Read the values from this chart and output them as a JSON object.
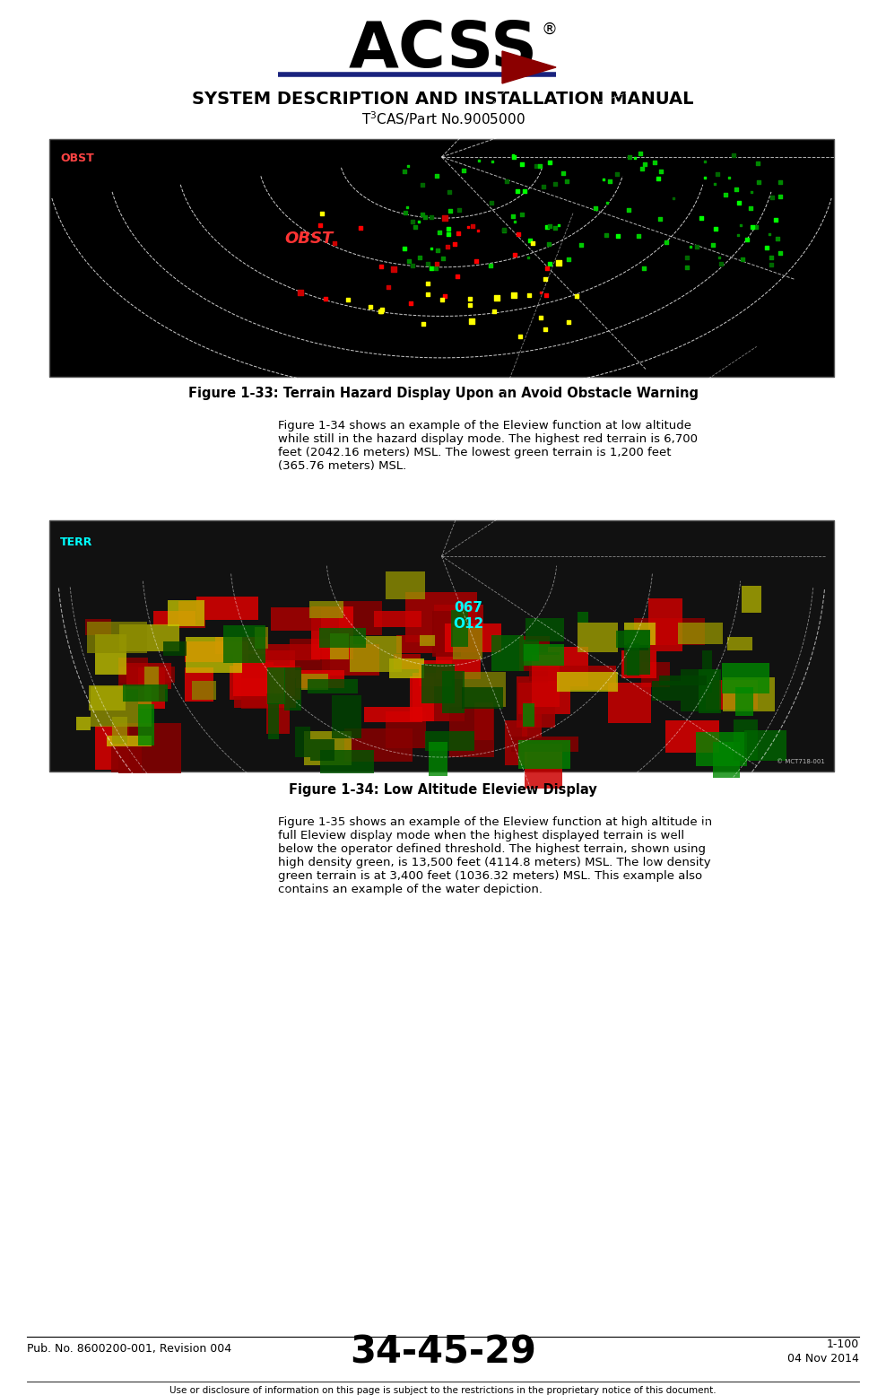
{
  "title_line1": "SYSTEM DESCRIPTION AND INSTALLATION MANUAL",
  "title_line2": "T$^3$CAS/Part No.9005000",
  "fig33_caption": "Figure 1-33: Terrain Hazard Display Upon an Avoid Obstacle Warning",
  "fig34_caption": "Figure 1-34: Low Altitude Eleview Display",
  "fig33_text": "Figure 1-34 shows an example of the Eleview function at low altitude\nwhile still in the hazard display mode. The highest red terrain is 6,700\nfeet (2042.16 meters) MSL. The lowest green terrain is 1,200 feet\n(365.76 meters) MSL.",
  "fig34_text": "Figure 1-35 shows an example of the Eleview function at high altitude in\nfull Eleview display mode when the highest displayed terrain is well\nbelow the operator defined threshold. The highest terrain, shown using\nhigh density green, is 13,500 feet (4114.8 meters) MSL. The low density\ngreen terrain is at 3,400 feet (1036.32 meters) MSL. This example also\ncontains an example of the water depiction.",
  "footer_center": "34-45-29",
  "footer_left": "Pub. No. 8600200-001, Revision 004",
  "footer_right_line1": "1-100",
  "footer_right_line2": "04 Nov 2014",
  "footer_bottom": "Use or disclosure of information on this page is subject to the restrictions in the proprietary notice of this document.",
  "bg_color": "#ffffff",
  "image1_path": null,
  "image2_path": null
}
